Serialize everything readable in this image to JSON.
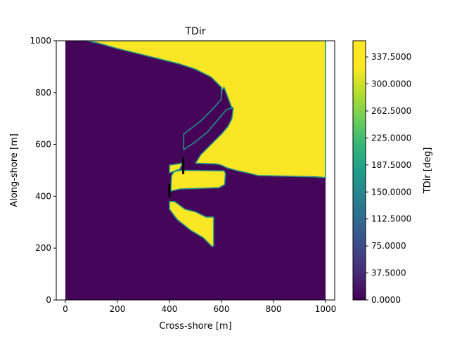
{
  "chart_data": {
    "type": "heatmap",
    "title": "TDir",
    "xlabel": "Cross-shore [m]",
    "ylabel": "Along-shore [m]",
    "xlim": [
      -35,
      1035
    ],
    "ylim": [
      0,
      1000
    ],
    "xticks": [
      0,
      200,
      400,
      600,
      800,
      1000
    ],
    "yticks": [
      0,
      200,
      400,
      600,
      800,
      1000
    ],
    "domain": {
      "x": [
        0,
        1000
      ],
      "y": [
        0,
        1000
      ]
    },
    "colormap": "viridis",
    "colorbar": {
      "label": "TDir [deg]",
      "range": [
        0,
        360
      ],
      "ticks": [
        0,
        37.5,
        75,
        112.5,
        150,
        187.5,
        225,
        262.5,
        300,
        337.5
      ],
      "tick_labels": [
        "0.0000",
        "37.5000",
        "75.0000",
        "112.5000",
        "150.0000",
        "187.5000",
        "225.0000",
        "262.5000",
        "300.0000",
        "337.5000"
      ]
    },
    "background_value": 5,
    "regions": [
      {
        "name": "upper-right",
        "value": 358,
        "polygon": [
          [
            80,
            1000
          ],
          [
            1000,
            1000
          ],
          [
            1000,
            472
          ],
          [
            960,
            475
          ],
          [
            740,
            480
          ],
          [
            700,
            490
          ],
          [
            655,
            500
          ],
          [
            620,
            510
          ],
          [
            600,
            520
          ],
          [
            580,
            525
          ],
          [
            500,
            527
          ],
          [
            520,
            560
          ],
          [
            560,
            600
          ],
          [
            600,
            640
          ],
          [
            625,
            670
          ],
          [
            640,
            700
          ],
          [
            645,
            740
          ],
          [
            620,
            760
          ],
          [
            600,
            790
          ],
          [
            600,
            820
          ],
          [
            560,
            860
          ],
          [
            500,
            890
          ],
          [
            440,
            910
          ],
          [
            360,
            930
          ],
          [
            280,
            950
          ],
          [
            200,
            970
          ],
          [
            130,
            990
          ]
        ]
      },
      {
        "name": "upper-finger",
        "value": 2,
        "polygon": [
          [
            455,
            580
          ],
          [
            455,
            640
          ],
          [
            520,
            690
          ],
          [
            560,
            730
          ],
          [
            598,
            772
          ],
          [
            602,
            810
          ],
          [
            610,
            820
          ],
          [
            640,
            740
          ],
          [
            620,
            735
          ],
          [
            590,
            700
          ],
          [
            548,
            650
          ],
          [
            500,
            610
          ]
        ]
      },
      {
        "name": "middle-bar",
        "value": 358,
        "polygon": [
          [
            405,
            420
          ],
          [
            408,
            480
          ],
          [
            418,
            495
          ],
          [
            440,
            500
          ],
          [
            610,
            498
          ],
          [
            615,
            488
          ],
          [
            612,
            445
          ],
          [
            590,
            433
          ],
          [
            440,
            428
          ]
        ]
      },
      {
        "name": "lower-finger",
        "value": 358,
        "polygon": [
          [
            400,
            380
          ],
          [
            400,
            350
          ],
          [
            430,
            310
          ],
          [
            480,
            270
          ],
          [
            530,
            240
          ],
          [
            565,
            205
          ],
          [
            570,
            210
          ],
          [
            570,
            320
          ],
          [
            540,
            320
          ],
          [
            500,
            340
          ],
          [
            460,
            350
          ],
          [
            420,
            380
          ]
        ]
      },
      {
        "name": "small-yellow-wedge",
        "value": 358,
        "polygon": [
          [
            400,
            520
          ],
          [
            400,
            490
          ],
          [
            415,
            495
          ],
          [
            440,
            505
          ],
          [
            450,
            528
          ]
        ]
      }
    ],
    "structures": [
      {
        "name": "breakwater-1",
        "x": 453,
        "y": [
          485,
          550
        ]
      },
      {
        "name": "breakwater-2",
        "x": 400,
        "y": [
          397,
          447
        ]
      }
    ]
  }
}
